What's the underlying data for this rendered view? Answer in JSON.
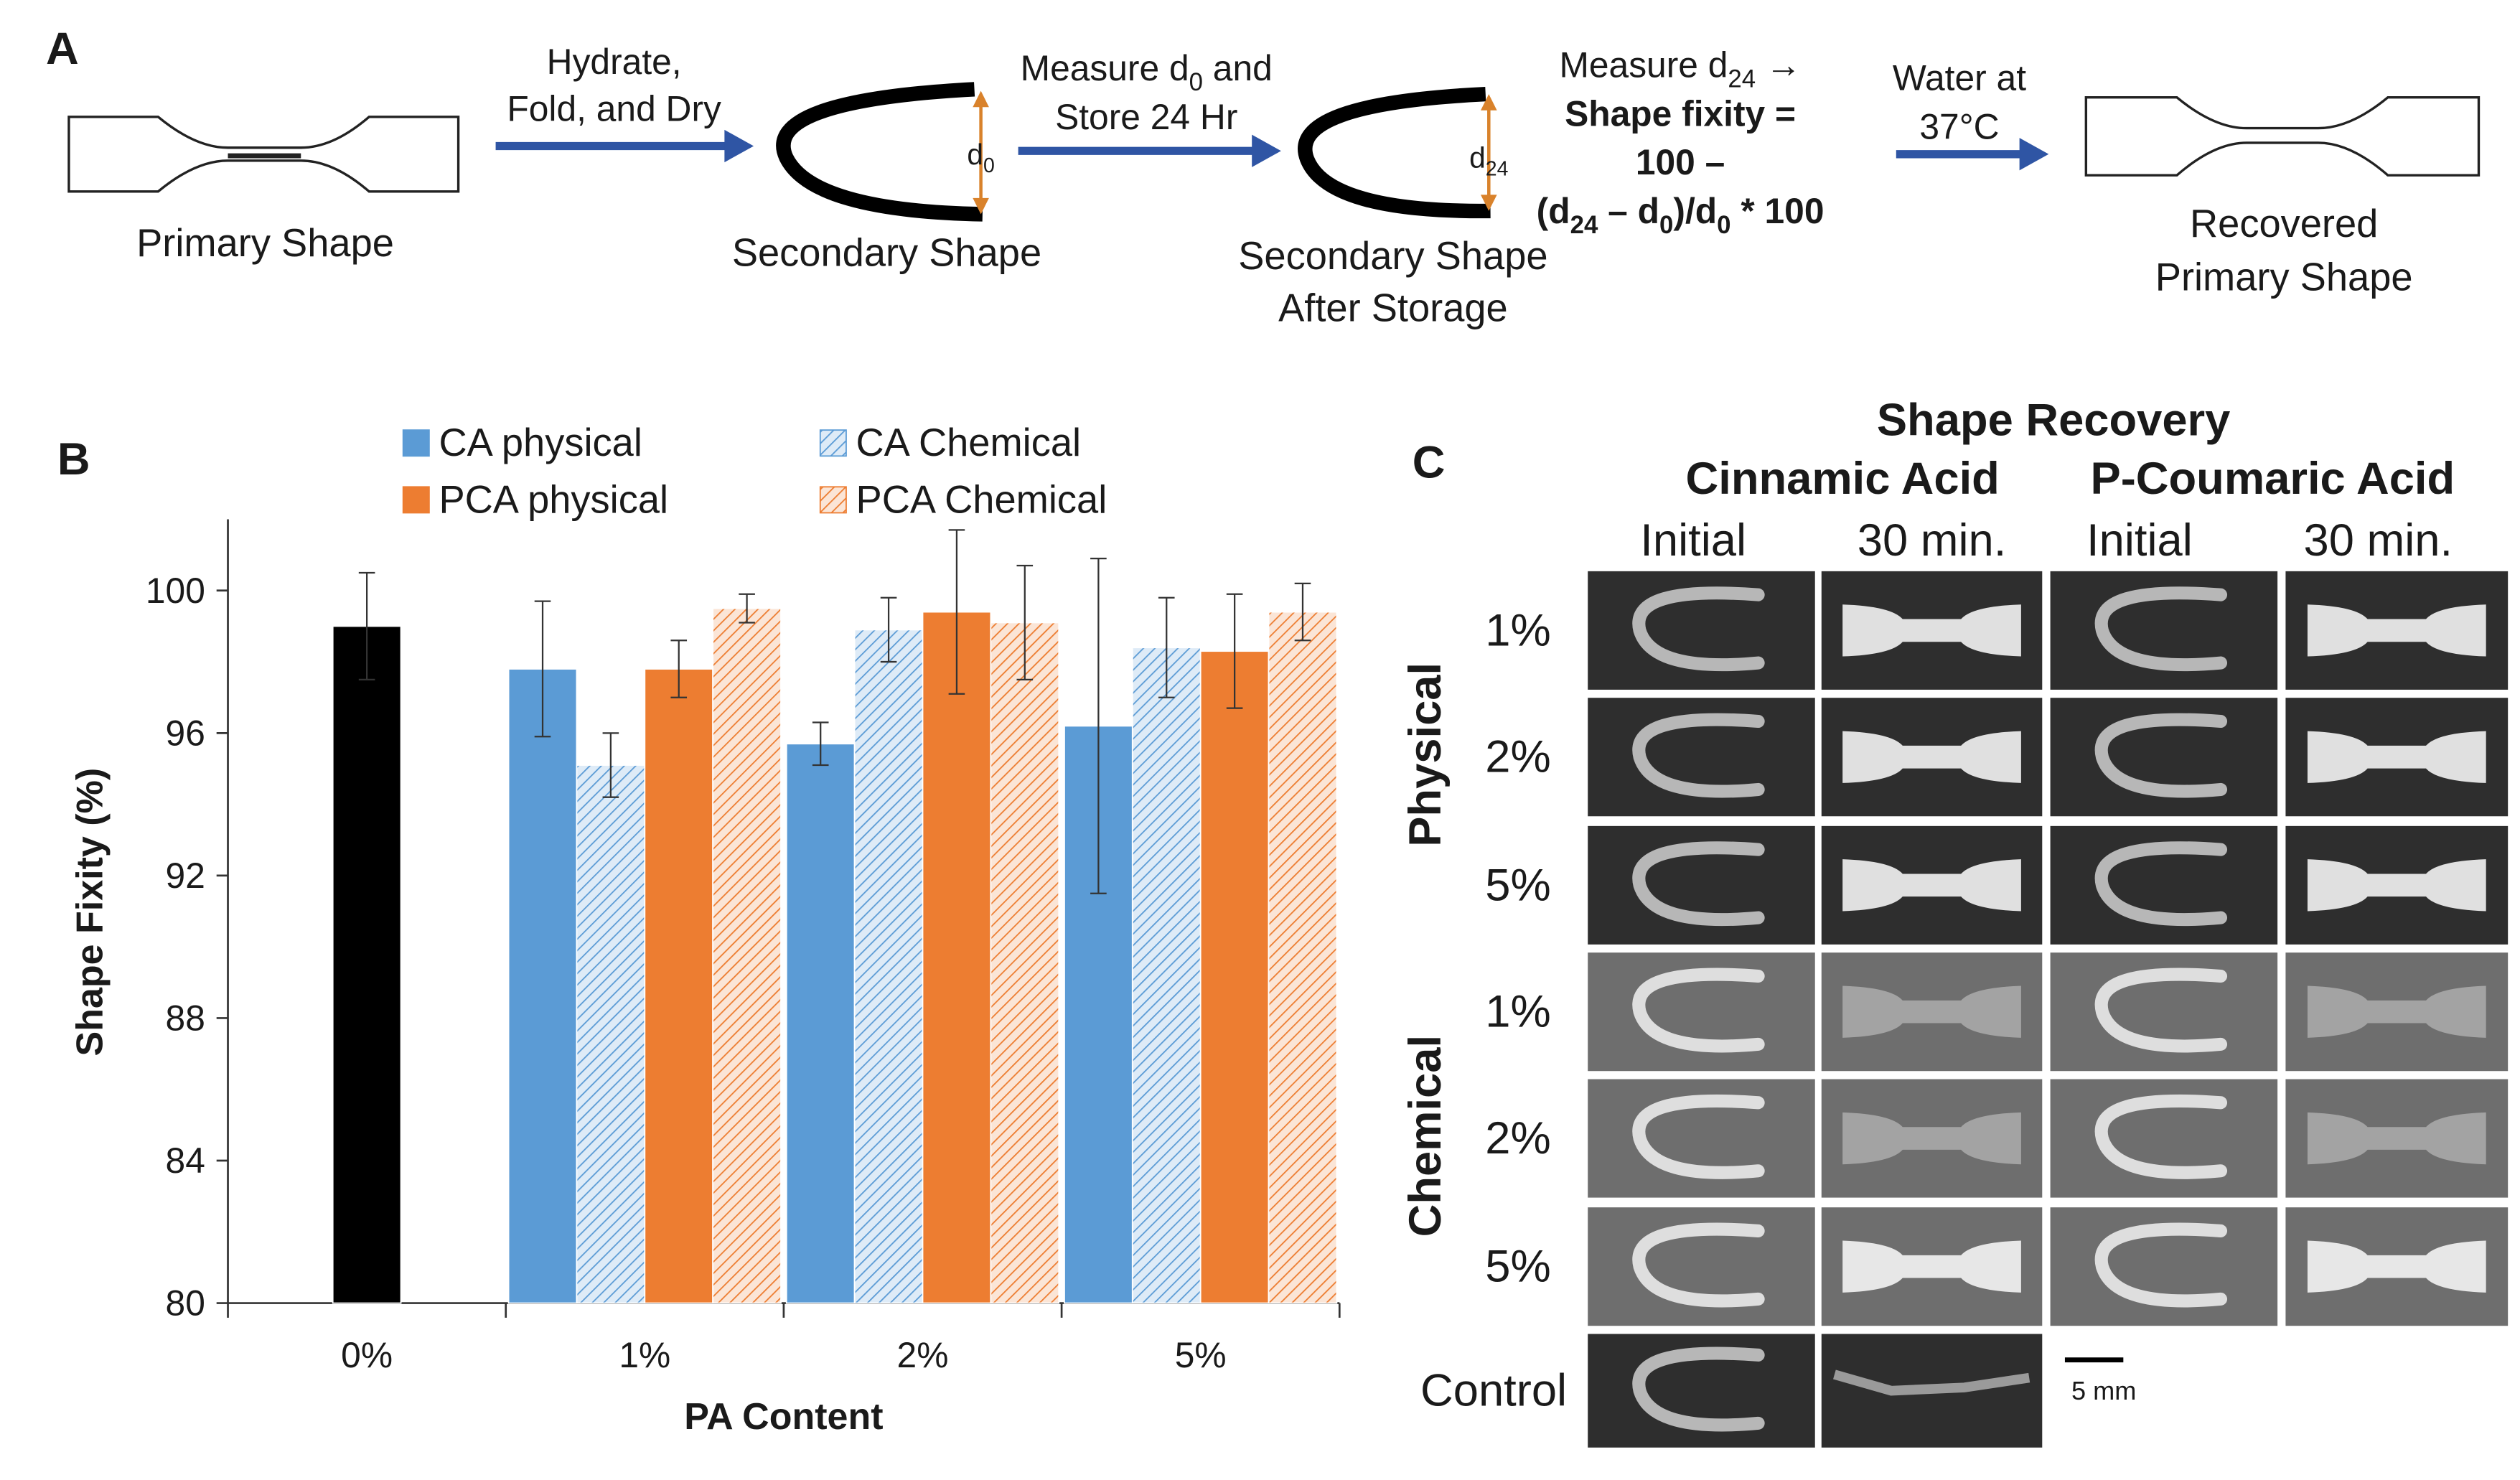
{
  "panel_a": {
    "label": "A",
    "primary_shape": "Primary Shape",
    "step1": [
      "Hydrate,",
      "Fold, and Dry"
    ],
    "secondary_shape": "Secondary Shape",
    "d0_label": [
      [
        "d",
        "0"
      ]
    ],
    "step2": [
      [
        "Measure d",
        "0",
        " and"
      ],
      "Store 24 Hr"
    ],
    "stored_shape": [
      "Secondary Shape",
      "After Storage"
    ],
    "d24_label": [
      [
        "d",
        "24"
      ]
    ],
    "formula": [
      [
        "Measure d",
        "24",
        " →"
      ],
      "Shape fixity =",
      "100 –",
      [
        "(d",
        "24",
        " – d",
        "0",
        ")/d",
        "0",
        " * 100"
      ]
    ],
    "step3": [
      "Water at",
      "37°C"
    ],
    "recovered_shape": [
      "Recovered",
      "Primary Shape"
    ]
  },
  "panel_b_label": "B",
  "chart_data": {
    "type": "bar",
    "xlabel": "PA Content",
    "ylabel": "Shape Fixity (%)",
    "categories": [
      "0%",
      "1%",
      "2%",
      "5%"
    ],
    "ylim": [
      80,
      102
    ],
    "yticks": [
      80,
      84,
      88,
      92,
      96,
      100
    ],
    "grid": false,
    "legend": "top",
    "series": [
      {
        "color": "#000000",
        "values": [
          99.0,
          null,
          null,
          null
        ],
        "errors": [
          1.5,
          null,
          null,
          null
        ]
      },
      {
        "name": "CA physical",
        "color": "#5b9bd5",
        "values": [
          null,
          97.8,
          95.7,
          96.2
        ],
        "errors": [
          null,
          1.9,
          0.6,
          4.7
        ]
      },
      {
        "name": "CA Chemical",
        "color": "#deebf7",
        "hatch_color": "#5b9bd5",
        "values": [
          null,
          95.1,
          98.9,
          98.4
        ],
        "errors": [
          null,
          0.9,
          0.9,
          1.4
        ]
      },
      {
        "name": "PCA physical",
        "color": "#ed7d31",
        "values": [
          null,
          97.8,
          99.4,
          98.3
        ],
        "errors": [
          null,
          0.8,
          2.3,
          1.6
        ]
      },
      {
        "name": "PCA Chemical",
        "color": "#fbe5d6",
        "hatch_color": "#ed7d31",
        "values": [
          null,
          99.5,
          99.1,
          99.4
        ],
        "errors": [
          null,
          0.4,
          1.6,
          0.8
        ]
      }
    ]
  },
  "panel_c": {
    "label": "C",
    "title": "Shape Recovery",
    "acids": [
      "Cinnamic Acid",
      "P-Coumaric Acid"
    ],
    "columns": [
      "Initial",
      "30 min.",
      "Initial",
      "30 min."
    ],
    "groups": [
      "Physical",
      "Chemical"
    ],
    "rows": [
      "1%",
      "2%",
      "5%",
      "1%",
      "2%",
      "5%",
      "Control"
    ],
    "scale_bar": "5 mm"
  }
}
